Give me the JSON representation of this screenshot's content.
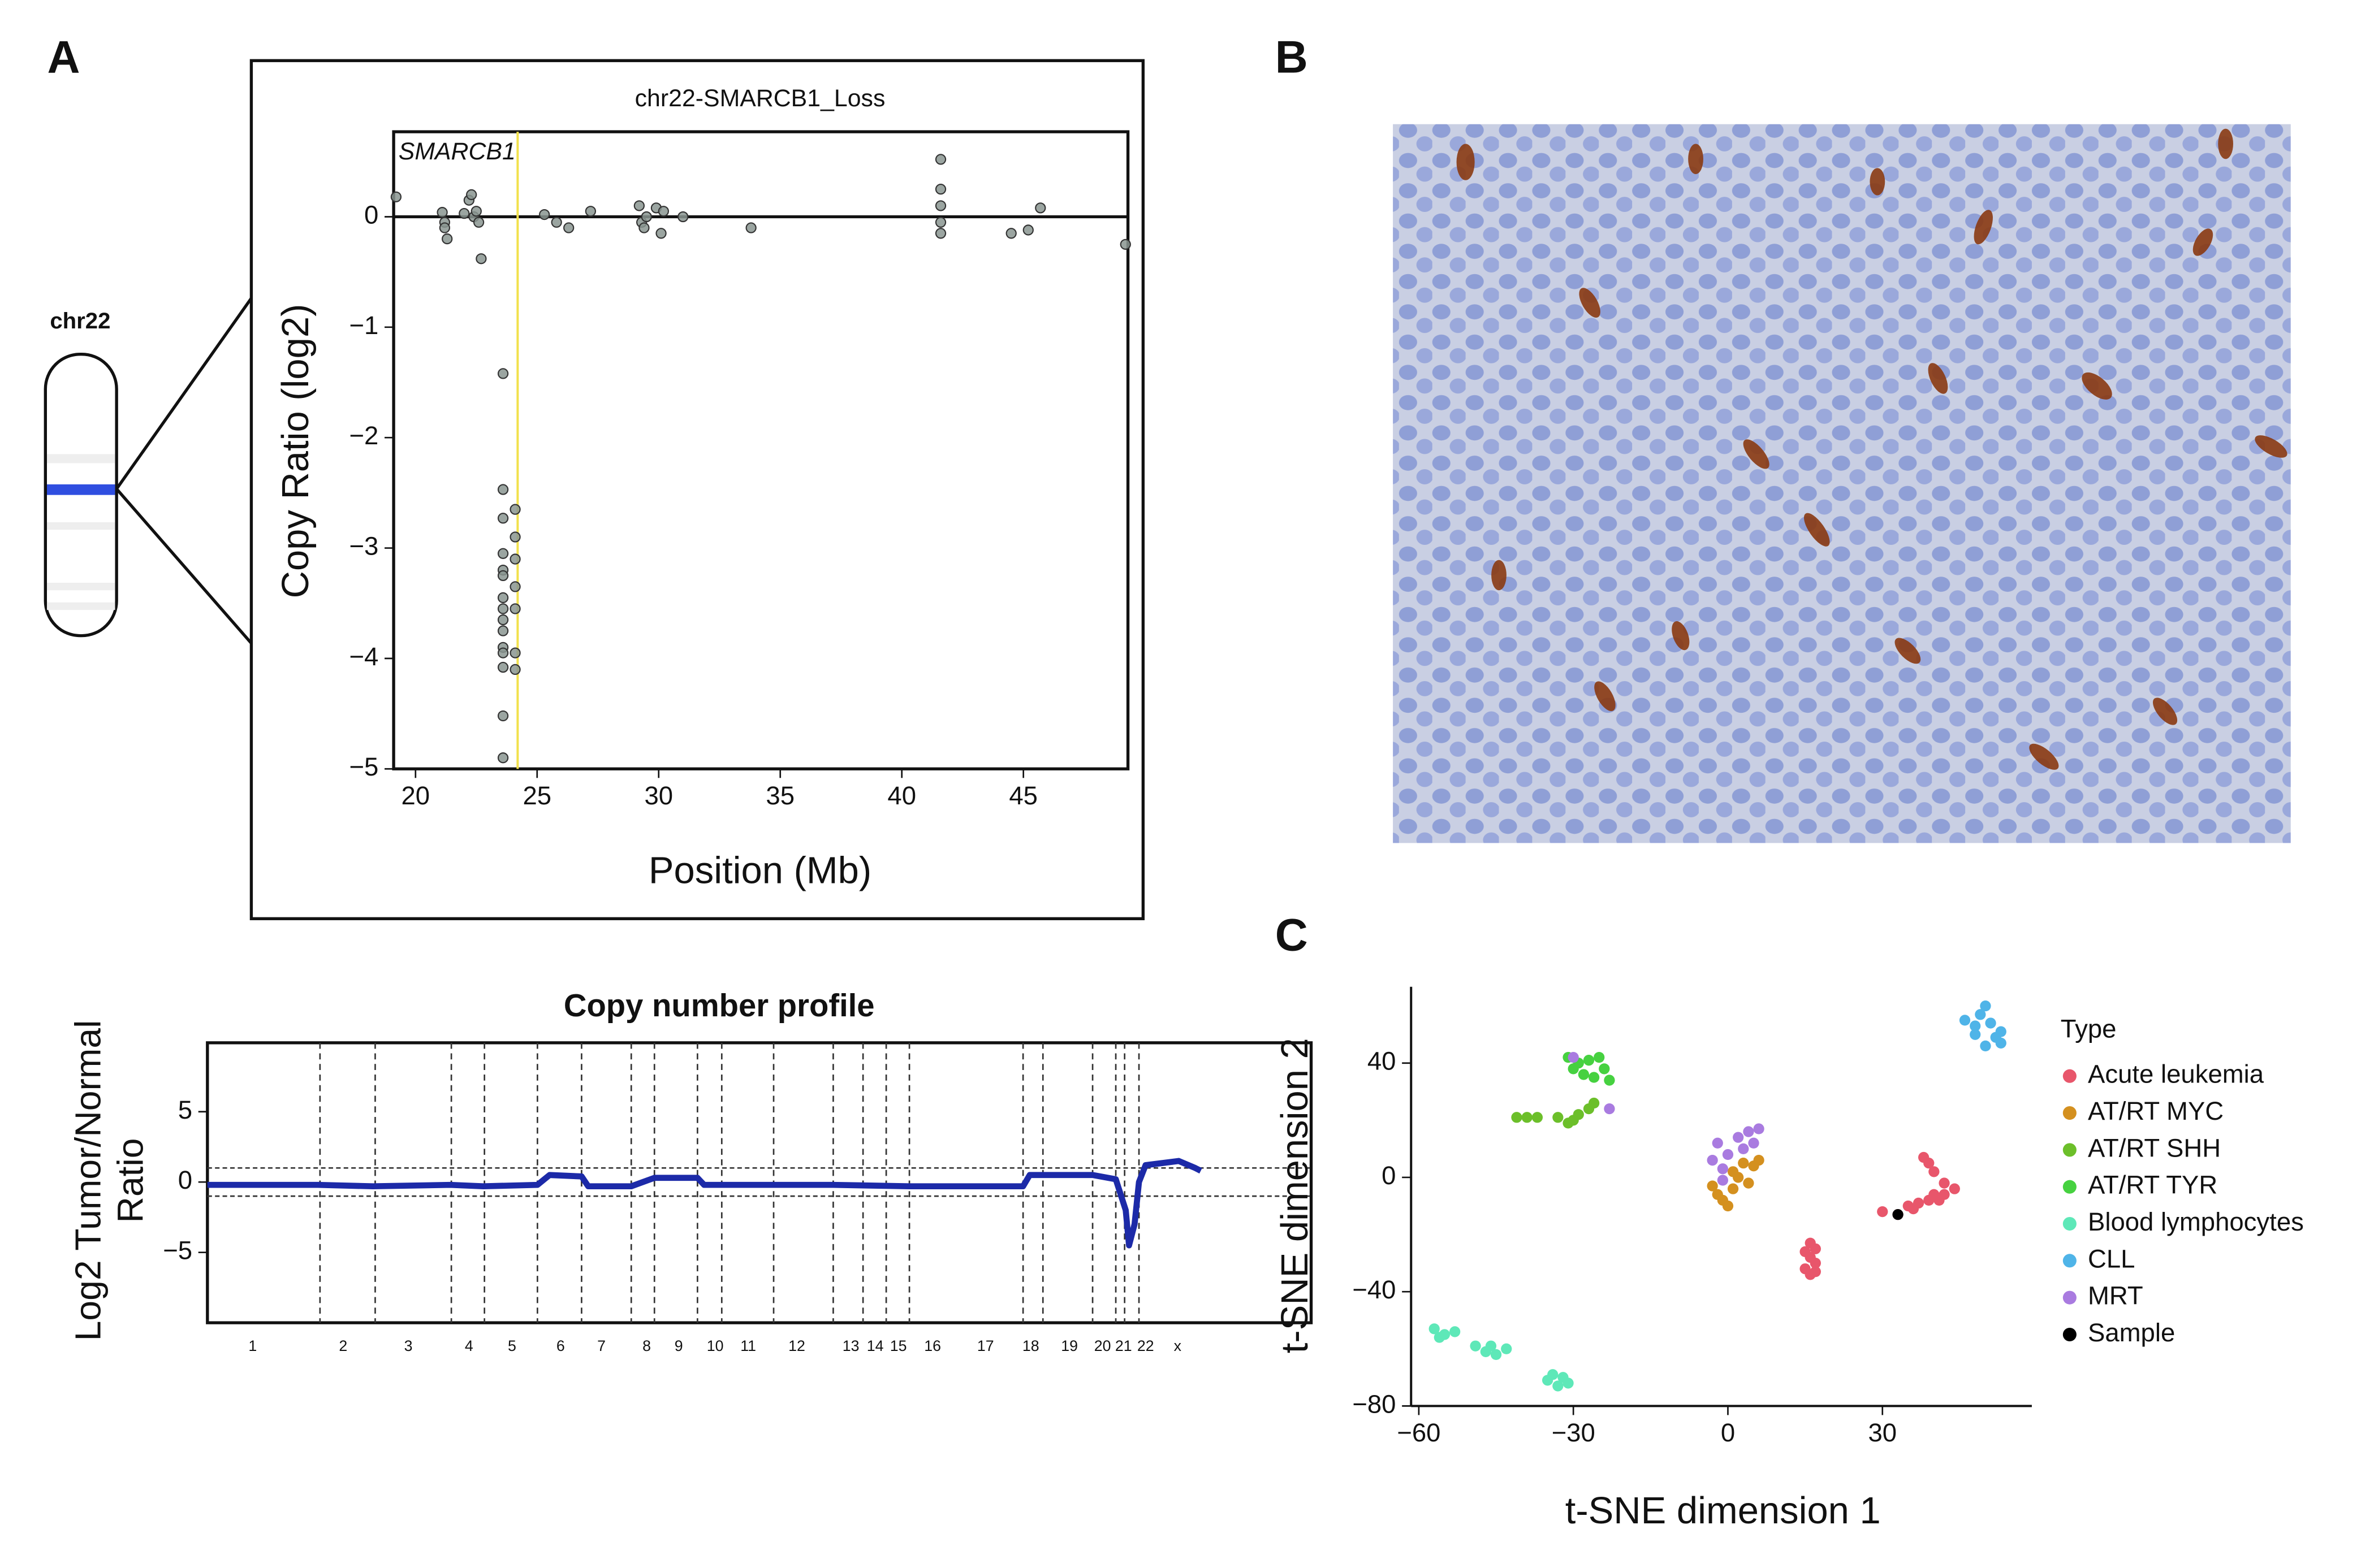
{
  "panels": [
    "A",
    "B",
    "C"
  ],
  "ideogram_label": "chr22",
  "chart_data": [
    {
      "type": "scatter",
      "title": "chr22-SMARCB1_Loss",
      "annotation": "SMARCB1",
      "xlabel": "Position (Mb)",
      "ylabel": "Copy Ratio (log2)",
      "color": "#8a9590",
      "xlim": [
        19.1,
        49.3
      ],
      "xticks": [
        20,
        25,
        30,
        35,
        40,
        45
      ],
      "ylim": [
        -5.0,
        0.77
      ],
      "yticks": [
        {
          "value": -5,
          "label": "−5"
        },
        {
          "value": -4,
          "label": "−4"
        },
        {
          "value": -3,
          "label": "−3"
        },
        {
          "value": -2,
          "label": "−2"
        },
        {
          "value": -1,
          "label": "−1"
        },
        0
      ],
      "vlines": [
        24.2
      ],
      "hlines": [
        0
      ],
      "x": [
        19.2,
        21.1,
        21.2,
        21.2,
        21.3,
        22.0,
        22.2,
        22.3,
        22.4,
        22.5,
        22.6,
        22.7,
        23.6,
        23.6,
        23.6,
        23.6,
        23.6,
        23.6,
        23.6,
        23.6,
        23.6,
        23.6,
        23.6,
        23.6,
        23.6,
        23.6,
        23.6,
        24.1,
        24.1,
        24.1,
        24.1,
        24.1,
        24.1,
        24.1,
        25.3,
        25.8,
        26.3,
        27.2,
        29.2,
        29.3,
        29.4,
        29.5,
        29.9,
        30.1,
        30.2,
        31.0,
        33.8,
        41.6,
        41.6,
        41.6,
        41.6,
        41.6,
        44.5,
        45.2,
        45.7,
        49.2
      ],
      "values": [
        0.18,
        0.04,
        -0.05,
        -0.1,
        -0.2,
        0.03,
        0.15,
        0.2,
        0.0,
        0.05,
        -0.05,
        -0.38,
        -1.42,
        -2.47,
        -2.73,
        -3.05,
        -3.2,
        -3.25,
        -3.45,
        -3.55,
        -3.65,
        -3.75,
        -3.9,
        -3.95,
        -4.08,
        -4.52,
        -4.9,
        -2.65,
        -2.9,
        -3.1,
        -3.35,
        -3.55,
        -3.95,
        -4.1,
        0.02,
        -0.05,
        -0.1,
        0.05,
        0.1,
        -0.05,
        -0.1,
        0.0,
        0.08,
        -0.15,
        0.05,
        0.0,
        -0.1,
        0.52,
        0.25,
        0.1,
        -0.05,
        -0.15,
        -0.15,
        -0.12,
        0.08,
        -0.25
      ]
    },
    {
      "type": "line",
      "title": "Copy number profile",
      "ylabel": [
        "Log2 Tumor/Normal",
        "Ratio"
      ],
      "color": "#1c2aa8",
      "xlim": [
        0,
        100
      ],
      "xticks": [
        {
          "value": 4.1,
          "label": "1"
        },
        {
          "value": 12.3,
          "label": "2"
        },
        {
          "value": 18.2,
          "label": "3"
        },
        {
          "value": 23.7,
          "label": "4"
        },
        {
          "value": 27.6,
          "label": "5"
        },
        {
          "value": 32.0,
          "label": "6"
        },
        {
          "value": 35.7,
          "label": "7"
        },
        {
          "value": 39.8,
          "label": "8"
        },
        {
          "value": 42.7,
          "label": "9"
        },
        {
          "value": 46.0,
          "label": "10"
        },
        {
          "value": 49.0,
          "label": "11"
        },
        {
          "value": 53.4,
          "label": "12"
        },
        {
          "value": 58.3,
          "label": "13"
        },
        {
          "value": 60.5,
          "label": "14"
        },
        {
          "value": 62.6,
          "label": "15"
        },
        {
          "value": 65.7,
          "label": "16"
        },
        {
          "value": 70.5,
          "label": "17"
        },
        {
          "value": 74.6,
          "label": "18"
        },
        {
          "value": 78.1,
          "label": "19"
        },
        {
          "value": 81.1,
          "label": "20"
        },
        {
          "value": 83.0,
          "label": "21"
        },
        {
          "value": 85.0,
          "label": "22"
        },
        {
          "value": 87.9,
          "label": "x"
        }
      ],
      "ylim": [
        -10,
        9.9
      ],
      "yticks": [
        {
          "value": -5,
          "label": "−5"
        },
        0,
        5
      ],
      "vlines": [
        10.2,
        15.2,
        22.1,
        25.1,
        29.9,
        33.9,
        38.4,
        40.5,
        44.4,
        46.6,
        51.3,
        56.7,
        59.4,
        61.5,
        63.6,
        73.9,
        75.7,
        80.2,
        82.3,
        83.1,
        84.4
      ],
      "hlines": [
        -1,
        1
      ],
      "x": [
        0,
        10,
        15,
        22,
        25,
        29.9,
        31,
        33.9,
        34.5,
        38.4,
        40.5,
        44.4,
        45,
        56.7,
        63.6,
        73.9,
        74.5,
        80.2,
        82.3,
        83.2,
        83.5,
        84,
        84.4,
        85,
        88,
        89.5,
        90
      ],
      "values": [
        -0.2,
        -0.2,
        -0.3,
        -0.2,
        -0.3,
        -0.2,
        0.5,
        0.4,
        -0.3,
        -0.3,
        0.3,
        0.3,
        -0.2,
        -0.2,
        -0.3,
        -0.3,
        0.5,
        0.5,
        0.2,
        -2,
        -4.5,
        -3,
        0,
        1.2,
        1.5,
        1.0,
        0.8
      ]
    },
    {
      "type": "scatter",
      "xlabel": "t-SNE dimension 1",
      "ylabel": "t-SNE dimension 2",
      "legend_title": "Type",
      "legend": "right",
      "xlim": [
        -61.5,
        59
      ],
      "xticks": [
        {
          "value": -60,
          "label": "−60"
        },
        {
          "value": -30,
          "label": "−30"
        },
        0,
        30
      ],
      "ylim": [
        -80,
        66.7
      ],
      "yticks": [
        {
          "value": -80,
          "label": "−80"
        },
        {
          "value": -40,
          "label": "−40"
        },
        0,
        40
      ],
      "series": [
        {
          "name": "Acute leukemia",
          "color": "#e8566b",
          "x": [
            16,
            17,
            16,
            17,
            15,
            16,
            17,
            15,
            30,
            33,
            35,
            37,
            39,
            40,
            42,
            44,
            42,
            40,
            39,
            38,
            36,
            41
          ],
          "values": [
            -23,
            -25,
            -28,
            -30,
            -32,
            -34,
            -33,
            -26,
            -12,
            -13,
            -10,
            -9,
            -8,
            -6,
            -6,
            -4,
            -2,
            2,
            5,
            7,
            -11,
            -8
          ]
        },
        {
          "name": "AT/RT MYC",
          "color": "#d4901f",
          "x": [
            -3,
            -2,
            -1,
            0,
            1,
            2,
            3,
            5,
            6,
            1,
            4
          ],
          "values": [
            -3,
            -6,
            -8,
            -10,
            -4,
            0,
            5,
            4,
            6,
            2,
            -2
          ]
        },
        {
          "name": "AT/RT SHH",
          "color": "#6cbf2a",
          "x": [
            -41,
            -39,
            -37,
            -33,
            -31,
            -29,
            -27,
            -26,
            -30
          ],
          "values": [
            21,
            21,
            21,
            21,
            19,
            22,
            24,
            26,
            20
          ]
        },
        {
          "name": "AT/RT TYR",
          "color": "#46d140",
          "x": [
            -31,
            -29,
            -27,
            -25,
            -24,
            -26,
            -28,
            -23,
            -30
          ],
          "values": [
            42,
            40,
            41,
            42,
            38,
            35,
            36,
            34,
            38
          ]
        },
        {
          "name": "Blood lymphocytes",
          "color": "#5ee8b8",
          "x": [
            -57,
            -55,
            -53,
            -56,
            -49,
            -47,
            -45,
            -43,
            -46,
            -35,
            -33,
            -31,
            -34,
            -32
          ],
          "values": [
            -53,
            -55,
            -54,
            -56,
            -59,
            -61,
            -62,
            -60,
            -59,
            -71,
            -73,
            -72,
            -69,
            -70
          ]
        },
        {
          "name": "CLL",
          "color": "#4fb4e8",
          "x": [
            46,
            48,
            49,
            50,
            51,
            52,
            53,
            50,
            48,
            53
          ],
          "values": [
            55,
            53,
            57,
            60,
            54,
            49,
            47,
            46,
            50,
            51
          ]
        },
        {
          "name": "MRT",
          "color": "#a97be0",
          "x": [
            -2,
            -3,
            -1,
            0,
            2,
            4,
            6,
            5,
            3,
            -1,
            -30,
            -23
          ],
          "values": [
            12,
            6,
            3,
            8,
            14,
            16,
            17,
            12,
            10,
            -1,
            42,
            24
          ]
        },
        {
          "name": "Sample",
          "color": "#000000",
          "x": [
            33
          ],
          "values": [
            -13
          ]
        }
      ]
    }
  ]
}
